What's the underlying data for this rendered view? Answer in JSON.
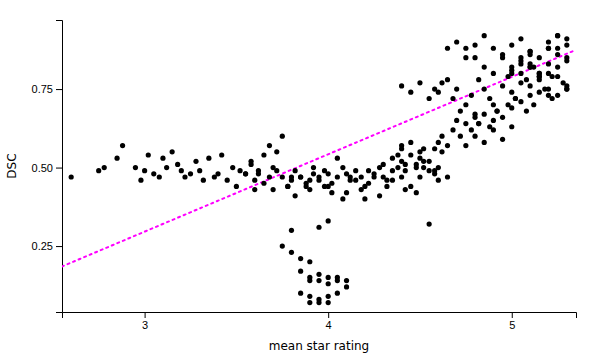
{
  "chart_data": {
    "type": "scatter",
    "xlabel": "mean star rating",
    "ylabel": "DSC",
    "xlim": [
      2.55,
      5.35
    ],
    "ylim": [
      0.04,
      0.97
    ],
    "xticks": [
      3,
      4,
      5
    ],
    "yticks": [
      0.25,
      {
        "value": 0.5,
        "label": "0.50"
      },
      0.75
    ],
    "grid": false,
    "series": [
      {
        "type": "scatter",
        "color": "#000000",
        "x": [
          2.6,
          2.75,
          2.78,
          2.85,
          2.88,
          2.95,
          2.98,
          3.0,
          3.02,
          3.05,
          3.08,
          3.1,
          3.12,
          3.15,
          3.18,
          3.2,
          3.22,
          3.25,
          3.28,
          3.3,
          3.32,
          3.35,
          3.38,
          3.4,
          3.42,
          3.45,
          3.48,
          3.5,
          3.52,
          3.55,
          3.58,
          3.6,
          3.62,
          3.65,
          3.68,
          3.7,
          3.72,
          3.75,
          3.78,
          3.8,
          3.82,
          3.85,
          3.88,
          3.9,
          3.92,
          3.95,
          3.98,
          4.0,
          4.02,
          4.05,
          4.08,
          4.1,
          4.12,
          4.15,
          4.18,
          4.2,
          4.22,
          4.25,
          4.28,
          4.3,
          4.32,
          4.35,
          4.38,
          4.4,
          4.42,
          4.45,
          4.48,
          4.5,
          4.52,
          4.55,
          4.58,
          4.6,
          3.55,
          3.58,
          3.6,
          3.62,
          3.65,
          3.68,
          3.7,
          3.72,
          3.75,
          3.78,
          3.8,
          3.82,
          3.85,
          3.88,
          3.9,
          3.92,
          3.95,
          3.98,
          4.0,
          4.02,
          4.05,
          4.08,
          4.1,
          4.12,
          4.15,
          4.18,
          4.2,
          4.22,
          4.25,
          4.28,
          4.3,
          4.32,
          4.35,
          4.38,
          4.4,
          4.42,
          4.45,
          4.48,
          4.5,
          4.52,
          4.55,
          4.58,
          4.6,
          4.62,
          4.65,
          3.75,
          3.8,
          3.85,
          3.9,
          3.85,
          3.9,
          3.9,
          3.95,
          3.95,
          4.0,
          4.0,
          4.05,
          4.05,
          4.1,
          4.1,
          3.8,
          3.95,
          4.0,
          3.85,
          3.9,
          3.95,
          4.0,
          4.05,
          3.9,
          3.95,
          4.0,
          4.35,
          4.4,
          4.4,
          4.42,
          4.45,
          4.48,
          4.5,
          4.52,
          4.55,
          4.58,
          4.6,
          4.62,
          4.65,
          4.68,
          4.7,
          4.72,
          4.75,
          4.78,
          4.8,
          4.82,
          4.85,
          4.88,
          4.9,
          4.92,
          4.95,
          4.98,
          5.0,
          5.02,
          5.05,
          5.08,
          5.1,
          5.12,
          5.15,
          5.18,
          5.2,
          5.22,
          5.25,
          5.28,
          5.3,
          4.75,
          4.8,
          4.85,
          4.9,
          4.95,
          5.0,
          5.05,
          5.1,
          5.15,
          5.2,
          5.25,
          5.3,
          5.0,
          5.05,
          5.1,
          5.15,
          5.2,
          5.25,
          5.3,
          5.05,
          5.1,
          5.15,
          5.2,
          5.25,
          5.3,
          5.05,
          5.1,
          5.15,
          5.2,
          5.25,
          5.3,
          5.1,
          5.15,
          5.2,
          5.25,
          5.3,
          5.0,
          5.05,
          5.1,
          4.65,
          4.7,
          4.75,
          4.8,
          4.85,
          4.9,
          4.95,
          5.0,
          4.4,
          4.45,
          4.5,
          4.55,
          4.58,
          4.6,
          4.62,
          4.65,
          4.68,
          4.7,
          4.75,
          4.8,
          4.82,
          4.85,
          4.88,
          4.9,
          4.92,
          4.95,
          4.98,
          5.0,
          5.02,
          5.05,
          5.08,
          5.1,
          5.12,
          5.15,
          5.2,
          5.22,
          5.25,
          5.3,
          4.72,
          4.75,
          4.78,
          4.8,
          4.82,
          4.85,
          4.9,
          4.95,
          5.0
        ],
        "values": [
          0.47,
          0.49,
          0.5,
          0.53,
          0.57,
          0.5,
          0.46,
          0.49,
          0.54,
          0.48,
          0.47,
          0.53,
          0.5,
          0.55,
          0.51,
          0.49,
          0.47,
          0.48,
          0.52,
          0.49,
          0.46,
          0.53,
          0.47,
          0.48,
          0.54,
          0.46,
          0.5,
          0.44,
          0.49,
          0.48,
          0.52,
          0.43,
          0.48,
          0.45,
          0.47,
          0.5,
          0.55,
          0.6,
          0.44,
          0.46,
          0.49,
          0.47,
          0.45,
          0.43,
          0.48,
          0.46,
          0.44,
          0.48,
          0.45,
          0.47,
          0.4,
          0.42,
          0.47,
          0.46,
          0.43,
          0.4,
          0.45,
          0.48,
          0.41,
          0.47,
          0.44,
          0.46,
          0.5,
          0.47,
          0.49,
          0.44,
          0.42,
          0.53,
          0.5,
          0.32,
          0.48,
          0.46,
          0.48,
          0.51,
          0.46,
          0.49,
          0.54,
          0.57,
          0.43,
          0.49,
          0.47,
          0.44,
          0.47,
          0.41,
          0.47,
          0.44,
          0.46,
          0.5,
          0.47,
          0.49,
          0.44,
          0.42,
          0.53,
          0.5,
          0.48,
          0.46,
          0.49,
          0.47,
          0.44,
          0.49,
          0.47,
          0.5,
          0.51,
          0.46,
          0.49,
          0.54,
          0.57,
          0.43,
          0.58,
          0.51,
          0.47,
          0.56,
          0.52,
          0.49,
          0.5,
          0.55,
          0.47,
          0.25,
          0.23,
          0.21,
          0.2,
          0.17,
          0.15,
          0.14,
          0.16,
          0.14,
          0.15,
          0.13,
          0.15,
          0.14,
          0.12,
          0.14,
          0.3,
          0.31,
          0.33,
          0.1,
          0.09,
          0.08,
          0.09,
          0.1,
          0.07,
          0.07,
          0.07,
          0.53,
          0.52,
          0.56,
          0.51,
          0.54,
          0.5,
          0.55,
          0.52,
          0.49,
          0.56,
          0.58,
          0.6,
          0.57,
          0.62,
          0.65,
          0.68,
          0.7,
          0.73,
          0.67,
          0.78,
          0.75,
          0.72,
          0.7,
          0.68,
          0.76,
          0.79,
          0.74,
          0.72,
          0.8,
          0.78,
          0.76,
          0.82,
          0.8,
          0.75,
          0.73,
          0.79,
          0.82,
          0.77,
          0.85,
          0.88,
          0.85,
          0.82,
          0.8,
          0.86,
          0.89,
          0.91,
          0.82,
          0.85,
          0.88,
          0.79,
          0.76,
          0.81,
          0.84,
          0.87,
          0.79,
          0.9,
          0.92,
          0.75,
          0.83,
          0.86,
          0.78,
          0.8,
          0.88,
          0.91,
          0.85,
          0.82,
          0.79,
          0.88,
          0.92,
          0.84,
          0.87,
          0.8,
          0.83,
          0.86,
          0.89,
          0.8,
          0.77,
          0.83,
          0.88,
          0.9,
          0.85,
          0.89,
          0.92,
          0.88,
          0.85,
          0.82,
          0.76,
          0.74,
          0.77,
          0.72,
          0.75,
          0.74,
          0.77,
          0.78,
          0.72,
          0.75,
          0.64,
          0.66,
          0.64,
          0.67,
          0.63,
          0.65,
          0.68,
          0.66,
          0.7,
          0.69,
          0.72,
          0.71,
          0.68,
          0.73,
          0.7,
          0.74,
          0.75,
          0.72,
          0.73,
          0.75,
          0.6,
          0.57,
          0.62,
          0.6,
          0.64,
          0.58,
          0.62,
          0.59,
          0.63
        ]
      },
      {
        "type": "line",
        "color": "#FF00FF",
        "line_style": "dotted",
        "x": [
          2.55,
          5.35
        ],
        "values": [
          0.185,
          0.875
        ]
      }
    ]
  }
}
